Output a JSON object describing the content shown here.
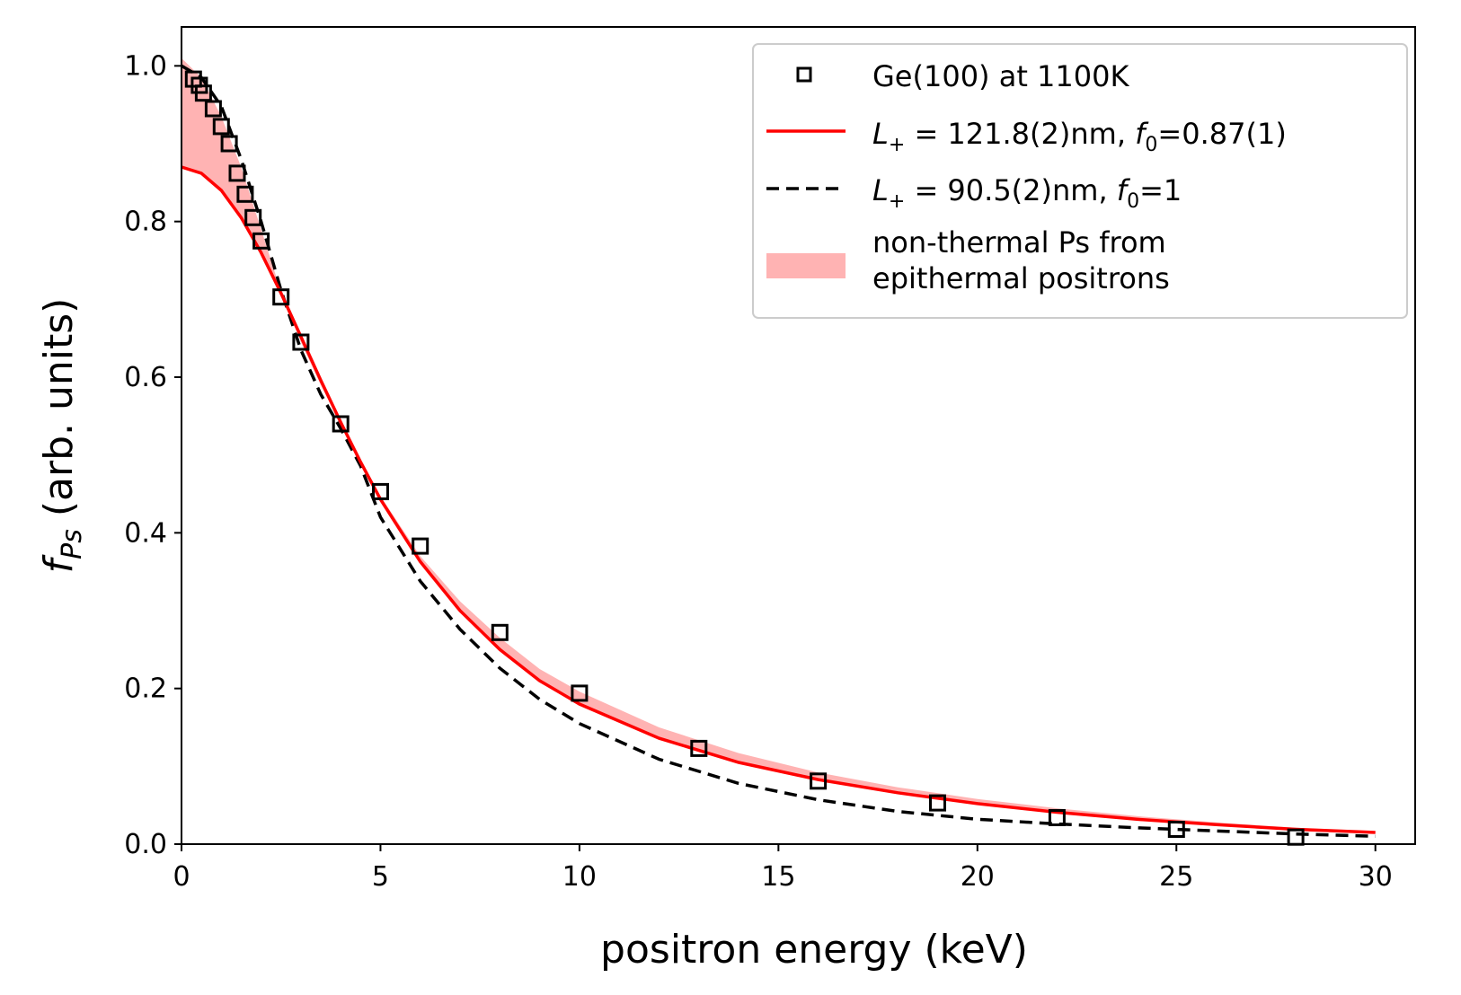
{
  "chart_data": {
    "type": "scatter",
    "title": "",
    "xlabel": "positron energy (keV)",
    "ylabel_symbol": "f",
    "ylabel_subscript": "Ps",
    "ylabel_units": " (arb. units)",
    "xlim": [
      0,
      31
    ],
    "ylim": [
      0,
      1.05
    ],
    "x_ticks": [
      0,
      5,
      10,
      15,
      20,
      25,
      30
    ],
    "x_tick_labels": [
      "0",
      "5",
      "10",
      "15",
      "20",
      "25",
      "30"
    ],
    "y_ticks": [
      0.0,
      0.2,
      0.4,
      0.6,
      0.8,
      1.0
    ],
    "y_tick_labels": [
      "0.0",
      "0.2",
      "0.4",
      "0.6",
      "0.8",
      "1.0"
    ],
    "grid": false,
    "legend_position": "top-right",
    "legend": {
      "markers": "Ge(100) at 1100K",
      "red_line": {
        "lhs": "L",
        "lhs_sub": "+",
        "rhs": " = 121.8(2)nm, ",
        "f": "f",
        "f_sub": "0",
        "f_val": "=0.87(1)"
      },
      "black_line": {
        "lhs": "L",
        "lhs_sub": "+",
        "rhs": " = 90.5(2)nm, ",
        "f": "f",
        "f_sub": "0",
        "f_val": "=1"
      },
      "shade_line1": "non-thermal Ps from",
      "shade_line2": "epithermal positrons"
    },
    "series": [
      {
        "name": "Ge(100) at 1100K",
        "kind": "markers",
        "color": "#000000",
        "x": [
          0.3,
          0.45,
          0.55,
          0.8,
          1.0,
          1.2,
          1.4,
          1.6,
          1.8,
          2.0,
          2.5,
          3.0,
          4.0,
          5.0,
          6.0,
          8.0,
          10.0,
          13.0,
          16.0,
          19.0,
          22.0,
          25.0,
          28.0
        ],
        "y": [
          0.983,
          0.975,
          0.965,
          0.945,
          0.922,
          0.9,
          0.862,
          0.835,
          0.805,
          0.775,
          0.703,
          0.645,
          0.54,
          0.453,
          0.383,
          0.272,
          0.194,
          0.123,
          0.081,
          0.053,
          0.034,
          0.019,
          0.009
        ]
      },
      {
        "name": "L+ = 121.8(2)nm, f0=0.87(1)",
        "kind": "solid-line",
        "color": "#ff0000",
        "x": [
          0,
          0.5,
          1,
          1.5,
          2,
          2.5,
          3,
          3.5,
          4,
          4.5,
          5,
          6,
          7,
          8,
          9,
          10,
          12,
          14,
          16,
          18,
          20,
          22,
          24,
          26,
          28,
          30
        ],
        "y": [
          0.87,
          0.862,
          0.84,
          0.805,
          0.76,
          0.708,
          0.652,
          0.596,
          0.542,
          0.491,
          0.443,
          0.363,
          0.3,
          0.25,
          0.21,
          0.18,
          0.136,
          0.105,
          0.083,
          0.066,
          0.052,
          0.041,
          0.032,
          0.025,
          0.019,
          0.015
        ]
      },
      {
        "name": "L+ = 90.5(2)nm, f0=1",
        "kind": "dashed-line",
        "color": "#000000",
        "x": [
          0,
          0.5,
          1,
          1.5,
          2,
          2.5,
          3,
          3.5,
          4,
          4.5,
          5,
          6,
          7,
          8,
          9,
          10,
          12,
          14,
          16,
          18,
          20,
          22,
          24,
          26,
          28,
          30
        ],
        "y": [
          1.0,
          0.985,
          0.948,
          0.88,
          0.8,
          0.712,
          0.635,
          0.578,
          0.534,
          0.486,
          0.42,
          0.338,
          0.276,
          0.226,
          0.186,
          0.155,
          0.109,
          0.078,
          0.057,
          0.042,
          0.032,
          0.026,
          0.021,
          0.017,
          0.013,
          0.01
        ]
      },
      {
        "name": "non-thermal Ps from epithermal positrons",
        "kind": "shaded-band",
        "color": "#ffb3b3",
        "x": [
          0,
          0.5,
          1,
          1.5,
          2,
          2.5,
          3,
          3.5,
          4,
          4.5,
          5,
          6,
          7,
          8,
          9,
          10,
          12,
          14,
          16,
          18,
          20,
          22,
          24,
          26,
          28,
          30
        ],
        "y_upper": [
          1.01,
          0.985,
          0.935,
          0.87,
          0.79,
          0.71,
          0.645,
          0.59,
          0.54,
          0.492,
          0.447,
          0.37,
          0.312,
          0.265,
          0.225,
          0.196,
          0.15,
          0.117,
          0.092,
          0.073,
          0.058,
          0.046,
          0.036,
          0.028,
          0.021,
          0.016
        ]
      }
    ]
  }
}
